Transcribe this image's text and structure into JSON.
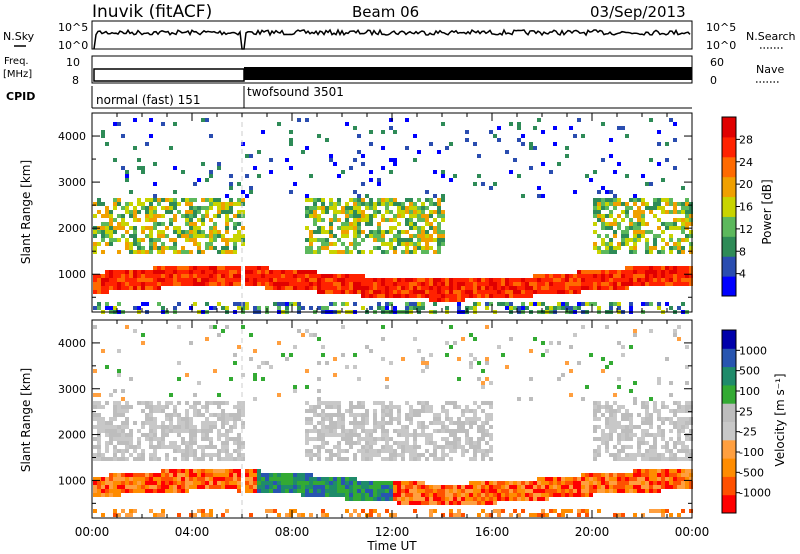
{
  "header": {
    "station": "Inuvik (fitACF)",
    "beam": "Beam 06",
    "date": "03/Sep/2013"
  },
  "strips": {
    "nsky_label": "N.Sky",
    "nsearch_label": "N.Search",
    "freq_label_1": "Freq.",
    "freq_label_2": "[MHz]",
    "nave_label": "Nave",
    "cpid_label": "CPID",
    "nsky_ticks": [
      "10^5",
      "10^0"
    ],
    "freq_ticks": [
      "10",
      "8"
    ],
    "nave_ticks": [
      "60",
      "0"
    ],
    "cpid_segments": [
      "normal (fast) 151",
      "twofsound 3501"
    ]
  },
  "colors": {
    "power_scale": [
      "#0000ff",
      "#2a4db0",
      "#2e8b57",
      "#5cb85c",
      "#c8d400",
      "#f0a000",
      "#ff6a00",
      "#ff2200",
      "#e00000"
    ],
    "velocity_scale": [
      "#ff0000",
      "#ff5000",
      "#ff8c00",
      "#ff9f3f",
      "#c8c8c8",
      "#bdbdbd",
      "#33aa33",
      "#1f8b6a",
      "#2855b0",
      "#0000aa"
    ]
  },
  "chart_data": [
    {
      "type": "heatmap",
      "title": "",
      "xlabel": "Time UT",
      "ylabel": "Slant Range [km]",
      "colorbar_label": "Power [dB]",
      "colorbar_ticks": [
        "28",
        "24",
        "20",
        "16",
        "12",
        "8",
        "4"
      ],
      "x_ticks": [
        "00:00",
        "04:00",
        "08:00",
        "12:00",
        "16:00",
        "20:00",
        "00:00"
      ],
      "y_ticks": [
        "4000",
        "3000",
        "2000",
        "1000"
      ],
      "xlim": [
        0,
        24
      ],
      "ylim": [
        180,
        4500
      ],
      "grid": false,
      "legend": "right colorbar"
    },
    {
      "type": "heatmap",
      "title": "",
      "xlabel": "Time UT",
      "ylabel": "Slant Range [km]",
      "colorbar_label": "Velocity [m s⁻¹]",
      "colorbar_ticks": [
        "1000",
        "500",
        "100",
        "25",
        "-25",
        "-100",
        "-500",
        "-1000"
      ],
      "x_ticks": [
        "00:00",
        "04:00",
        "08:00",
        "12:00",
        "16:00",
        "20:00",
        "00:00"
      ],
      "y_ticks": [
        "4000",
        "3000",
        "2000",
        "1000"
      ],
      "xlim": [
        0,
        24
      ],
      "ylim": [
        180,
        4500
      ],
      "grid": false,
      "legend": "right colorbar"
    }
  ]
}
